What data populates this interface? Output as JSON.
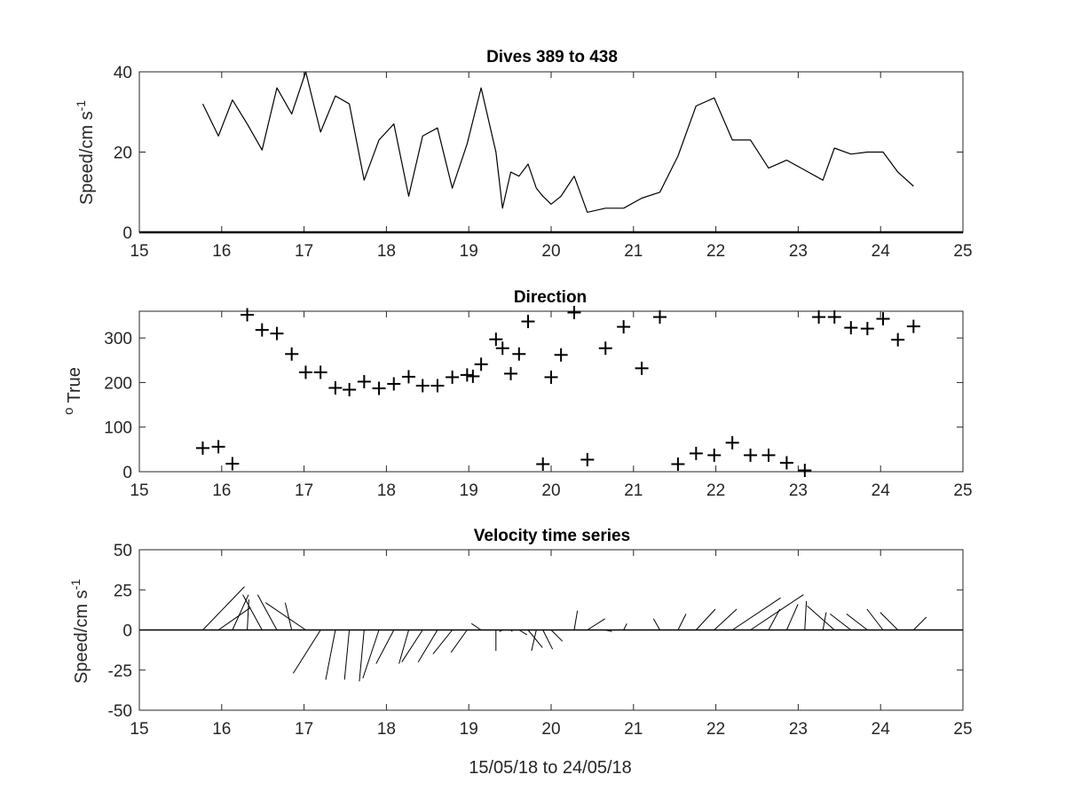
{
  "figure": {
    "xlabel": "15/05/18 to 24/05/18"
  },
  "chart_data": [
    {
      "type": "line",
      "title": "Dives 389 to 438",
      "ylabel": "Speed/cm s",
      "ylabel_superscript": "-1",
      "xlim": [
        15,
        25
      ],
      "ylim": [
        0,
        40
      ],
      "xticks": [
        "15",
        "16",
        "17",
        "18",
        "19",
        "20",
        "21",
        "22",
        "23",
        "24",
        "25"
      ],
      "yticks": [
        "0",
        "20",
        "40"
      ],
      "zero_line": true,
      "series": [
        {
          "color": "#000000",
          "x": [
            15.77,
            15.96,
            16.13,
            16.31,
            16.49,
            16.67,
            16.85,
            17.02,
            17.2,
            17.38,
            17.55,
            17.73,
            17.91,
            18.09,
            18.27,
            18.44,
            18.62,
            18.8,
            18.98,
            19.15,
            19.33,
            19.41,
            19.51,
            19.61,
            19.72,
            19.82,
            19.9,
            20.0,
            20.12,
            20.28,
            20.44,
            20.66,
            20.88,
            21.1,
            21.32,
            21.54,
            21.76,
            21.98,
            22.2,
            22.42,
            22.64,
            22.86,
            23.08,
            23.3,
            23.44,
            23.64,
            23.84,
            24.03,
            24.21,
            24.4
          ],
          "y": [
            32,
            24,
            33,
            27,
            20.5,
            36,
            29.5,
            40,
            25,
            34,
            32,
            13,
            23,
            27,
            9,
            24,
            26,
            11,
            22,
            36,
            20,
            6,
            15,
            14,
            17,
            11,
            9,
            7,
            9,
            14,
            5,
            6,
            6,
            8.5,
            10,
            19,
            31.5,
            33.5,
            23,
            23,
            16,
            18,
            15.5,
            13,
            21,
            19.5,
            20,
            20,
            15,
            11.5
          ]
        }
      ]
    },
    {
      "type": "scatter",
      "title": "Direction",
      "ylabel": "True",
      "ylabel_prefix": "o",
      "marker": "+",
      "xlim": [
        15,
        25
      ],
      "ylim": [
        0,
        360
      ],
      "xticks": [
        "15",
        "16",
        "17",
        "18",
        "19",
        "20",
        "21",
        "22",
        "23",
        "24",
        "25"
      ],
      "yticks": [
        "0",
        "100",
        "200",
        "300"
      ],
      "series": [
        {
          "color": "#000000",
          "x": [
            15.77,
            15.96,
            16.13,
            16.31,
            16.49,
            16.67,
            16.85,
            17.02,
            17.2,
            17.38,
            17.55,
            17.73,
            17.91,
            18.09,
            18.27,
            18.44,
            18.62,
            18.8,
            18.98,
            19.05,
            19.15,
            19.33,
            19.41,
            19.51,
            19.61,
            19.72,
            19.9,
            20.0,
            20.12,
            20.28,
            20.44,
            20.66,
            20.88,
            21.1,
            21.32,
            21.54,
            21.76,
            21.98,
            22.2,
            22.42,
            22.64,
            22.86,
            23.08,
            23.25,
            23.44,
            23.64,
            23.84,
            24.03,
            24.21,
            24.4
          ],
          "y": [
            53,
            56,
            18,
            352,
            318,
            310,
            264,
            223,
            223,
            188,
            184,
            202,
            187,
            197,
            213,
            193,
            193,
            212,
            217,
            214,
            241,
            297,
            277,
            220,
            264,
            337,
            17,
            212,
            262,
            357,
            27,
            277,
            325,
            232,
            347,
            17,
            41,
            37,
            65,
            37,
            37,
            20,
            3,
            347,
            347,
            323,
            321,
            343,
            296,
            326
          ]
        }
      ]
    },
    {
      "type": "quiver",
      "title": "Velocity time series",
      "ylabel": "Speed/cm s",
      "ylabel_superscript": "-1",
      "xlim": [
        15,
        25
      ],
      "ylim": [
        -50,
        50
      ],
      "xticks": [
        "15",
        "16",
        "17",
        "18",
        "19",
        "20",
        "21",
        "22",
        "23",
        "24",
        "25"
      ],
      "yticks": [
        "-50",
        "-25",
        "0",
        "25",
        "50"
      ],
      "zero_line": true,
      "series": [
        {
          "color": "#000000",
          "x": [
            15.77,
            15.96,
            16.13,
            16.31,
            16.49,
            16.67,
            16.85,
            17.02,
            17.2,
            17.38,
            17.55,
            17.73,
            17.91,
            18.09,
            18.27,
            18.44,
            18.62,
            18.8,
            18.98,
            19.15,
            19.33,
            19.41,
            19.51,
            19.61,
            19.72,
            19.82,
            19.9,
            20.0,
            20.12,
            20.28,
            20.44,
            20.66,
            20.88,
            21.1,
            21.32,
            21.54,
            21.76,
            21.98,
            22.2,
            22.42,
            22.64,
            22.86,
            23.08,
            23.3,
            23.44,
            23.64,
            23.84,
            24.03,
            24.21,
            24.4
          ],
          "u": [
            26,
            20,
            10,
            1,
            -12,
            -12,
            -4,
            -25,
            -17,
            -6,
            -3,
            -3,
            -10,
            -11,
            -6,
            -13,
            -12,
            -12,
            -10,
            -6,
            0,
            -2,
            1,
            5,
            9,
            -3,
            6,
            7,
            -8,
            2,
            11,
            4,
            2,
            7,
            -4,
            5,
            12,
            14,
            30,
            33,
            7,
            7,
            1,
            2,
            -17,
            -13,
            -13,
            -10,
            -11,
            8
          ],
          "v": [
            27,
            14,
            22,
            19,
            22,
            22,
            17,
            17,
            -27,
            -31,
            -31,
            -32,
            -30,
            -21,
            -21,
            -20,
            -20,
            -15,
            -14,
            4,
            -13,
            -1,
            -1,
            -3,
            -11,
            -13,
            -12,
            -7,
            0,
            12,
            7,
            -1,
            4,
            0,
            7,
            10,
            13,
            13,
            20,
            22,
            13,
            16,
            18,
            11,
            15,
            10,
            10,
            13,
            11,
            8
          ],
          "vector_scale_note": "u,v in cm/s"
        }
      ]
    }
  ]
}
